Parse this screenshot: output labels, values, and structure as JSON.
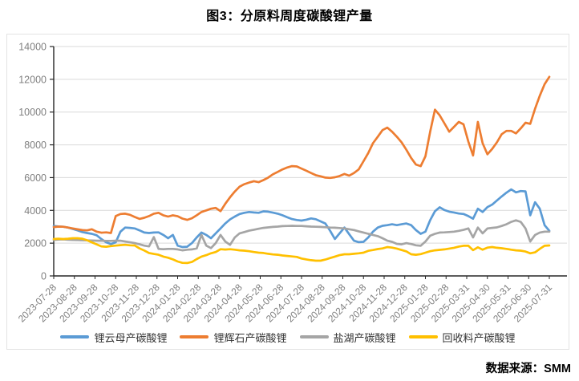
{
  "title": "图3：分原料周度碳酸锂产量",
  "source_note": "数据来源：SMM",
  "colors": {
    "axis": "#262626",
    "grid": "#D9D9D9",
    "tick_label": "#7F7F7F",
    "frame": "#E3E3E3",
    "legend_text": "#333333",
    "background": "#FFFFFF"
  },
  "chart_data": {
    "type": "line",
    "title": "图3：分原料周度碳酸锂产量",
    "xlabel": "",
    "ylabel": "",
    "ylim": [
      0,
      14000
    ],
    "y_ticks": [
      0,
      2000,
      4000,
      6000,
      8000,
      10000,
      12000,
      14000
    ],
    "grid": "horizontal",
    "legend_position": "bottom",
    "x_unit": "week",
    "x_tick_labels": [
      "2023-07-28",
      "2023-08-28",
      "2023-09-28",
      "2023-10-28",
      "2023-11-28",
      "2023-12-28",
      "2024-01-28",
      "2024-02-28",
      "2024-03-28",
      "2024-04-28",
      "2024-05-28",
      "2024-06-28",
      "2024-07-28",
      "2024-08-28",
      "2024-09-28",
      "2024-10-28",
      "2024-11-28",
      "2024-12-28",
      "2025-01-28",
      "2025-02-28",
      "2025-03-31",
      "2025-04-30",
      "2025-05-31",
      "2025-06-30",
      "2025-07-31"
    ],
    "series": [
      {
        "name": "锂云母产碳酸锂",
        "color": "#5B9BD5",
        "values": [
          3050,
          3020,
          3000,
          2950,
          2870,
          2780,
          2680,
          2620,
          2570,
          2480,
          2250,
          2050,
          1950,
          2050,
          2700,
          2950,
          2930,
          2900,
          2780,
          2650,
          2620,
          2650,
          2660,
          2500,
          2300,
          2500,
          1850,
          1760,
          1780,
          2000,
          2350,
          2650,
          2500,
          2300,
          2600,
          2900,
          3200,
          3450,
          3620,
          3780,
          3850,
          3900,
          3870,
          3850,
          3940,
          3920,
          3860,
          3800,
          3700,
          3580,
          3470,
          3410,
          3380,
          3430,
          3510,
          3460,
          3330,
          3200,
          2750,
          2250,
          2600,
          2950,
          2550,
          2150,
          2060,
          2080,
          2350,
          2700,
          2950,
          3060,
          3100,
          3150,
          3100,
          3150,
          3200,
          3100,
          2800,
          2570,
          2700,
          3400,
          3950,
          4190,
          4020,
          3920,
          3870,
          3810,
          3780,
          3650,
          3490,
          4100,
          3900,
          4200,
          4350,
          4600,
          4850,
          5080,
          5280,
          5100,
          5180,
          5160,
          3700,
          4500,
          4100,
          3100,
          2750
        ]
      },
      {
        "name": "锂辉石产碳酸锂",
        "color": "#ED7D31",
        "values": [
          2980,
          3010,
          3000,
          2950,
          2900,
          2850,
          2800,
          2780,
          2850,
          2700,
          2640,
          2660,
          2620,
          3650,
          3780,
          3800,
          3730,
          3600,
          3480,
          3550,
          3650,
          3800,
          3850,
          3700,
          3620,
          3700,
          3640,
          3500,
          3420,
          3520,
          3700,
          3900,
          4000,
          4100,
          4150,
          3950,
          4400,
          4800,
          5150,
          5450,
          5600,
          5700,
          5780,
          5720,
          5850,
          6000,
          6200,
          6350,
          6500,
          6620,
          6700,
          6680,
          6550,
          6420,
          6280,
          6150,
          6080,
          6000,
          5980,
          6020,
          6100,
          6220,
          6120,
          6280,
          6500,
          7000,
          7500,
          8100,
          8500,
          8900,
          9050,
          8800,
          8500,
          8150,
          7700,
          7200,
          6800,
          6700,
          7300,
          8800,
          10150,
          9800,
          9300,
          8800,
          9100,
          9400,
          9250,
          8200,
          7350,
          9400,
          8100,
          7420,
          7750,
          8150,
          8650,
          8850,
          8850,
          8700,
          9000,
          9350,
          9280,
          10200,
          11000,
          11700,
          12150
        ]
      },
      {
        "name": "盐湖产碳酸锂",
        "color": "#A5A5A5",
        "values": [
          2200,
          2220,
          2230,
          2210,
          2200,
          2190,
          2180,
          2170,
          2160,
          2150,
          2150,
          2140,
          2140,
          2150,
          2150,
          2100,
          2050,
          2000,
          1930,
          1850,
          1800,
          2370,
          1650,
          1630,
          1650,
          1650,
          1620,
          1560,
          1600,
          1620,
          1680,
          2500,
          1850,
          1700,
          2000,
          2500,
          2100,
          1900,
          2350,
          2600,
          2680,
          2760,
          2820,
          2880,
          2930,
          2960,
          2990,
          3010,
          3040,
          3050,
          3060,
          3050,
          3050,
          3030,
          3010,
          3000,
          2990,
          2970,
          2950,
          2940,
          2920,
          2900,
          2850,
          2800,
          2720,
          2650,
          2570,
          2500,
          2430,
          2300,
          2150,
          2080,
          1960,
          1930,
          2000,
          1950,
          1870,
          1840,
          2100,
          2450,
          2570,
          2650,
          2660,
          2680,
          2700,
          2750,
          2810,
          2900,
          2350,
          2950,
          2600,
          2900,
          2930,
          2960,
          3050,
          3150,
          3300,
          3390,
          3300,
          2900,
          2100,
          2500,
          2650,
          2700,
          2700
        ]
      },
      {
        "name": "回收料产碳酸锂",
        "color": "#FFC000",
        "values": [
          2250,
          2270,
          2250,
          2270,
          2300,
          2300,
          2270,
          2180,
          2050,
          1930,
          1800,
          1780,
          1820,
          1850,
          1880,
          1900,
          1870,
          1860,
          1680,
          1550,
          1400,
          1340,
          1290,
          1180,
          1110,
          1010,
          880,
          800,
          790,
          850,
          1030,
          1180,
          1270,
          1380,
          1460,
          1630,
          1610,
          1630,
          1600,
          1560,
          1540,
          1510,
          1460,
          1420,
          1400,
          1350,
          1310,
          1290,
          1250,
          1220,
          1190,
          1160,
          1060,
          1010,
          960,
          930,
          930,
          1000,
          1090,
          1180,
          1270,
          1320,
          1320,
          1350,
          1380,
          1420,
          1530,
          1580,
          1640,
          1680,
          1760,
          1730,
          1670,
          1580,
          1500,
          1320,
          1290,
          1330,
          1420,
          1510,
          1560,
          1590,
          1620,
          1670,
          1720,
          1790,
          1840,
          1840,
          1570,
          1750,
          1600,
          1730,
          1760,
          1720,
          1690,
          1650,
          1600,
          1560,
          1540,
          1490,
          1380,
          1440,
          1650,
          1840,
          1860
        ]
      }
    ]
  }
}
